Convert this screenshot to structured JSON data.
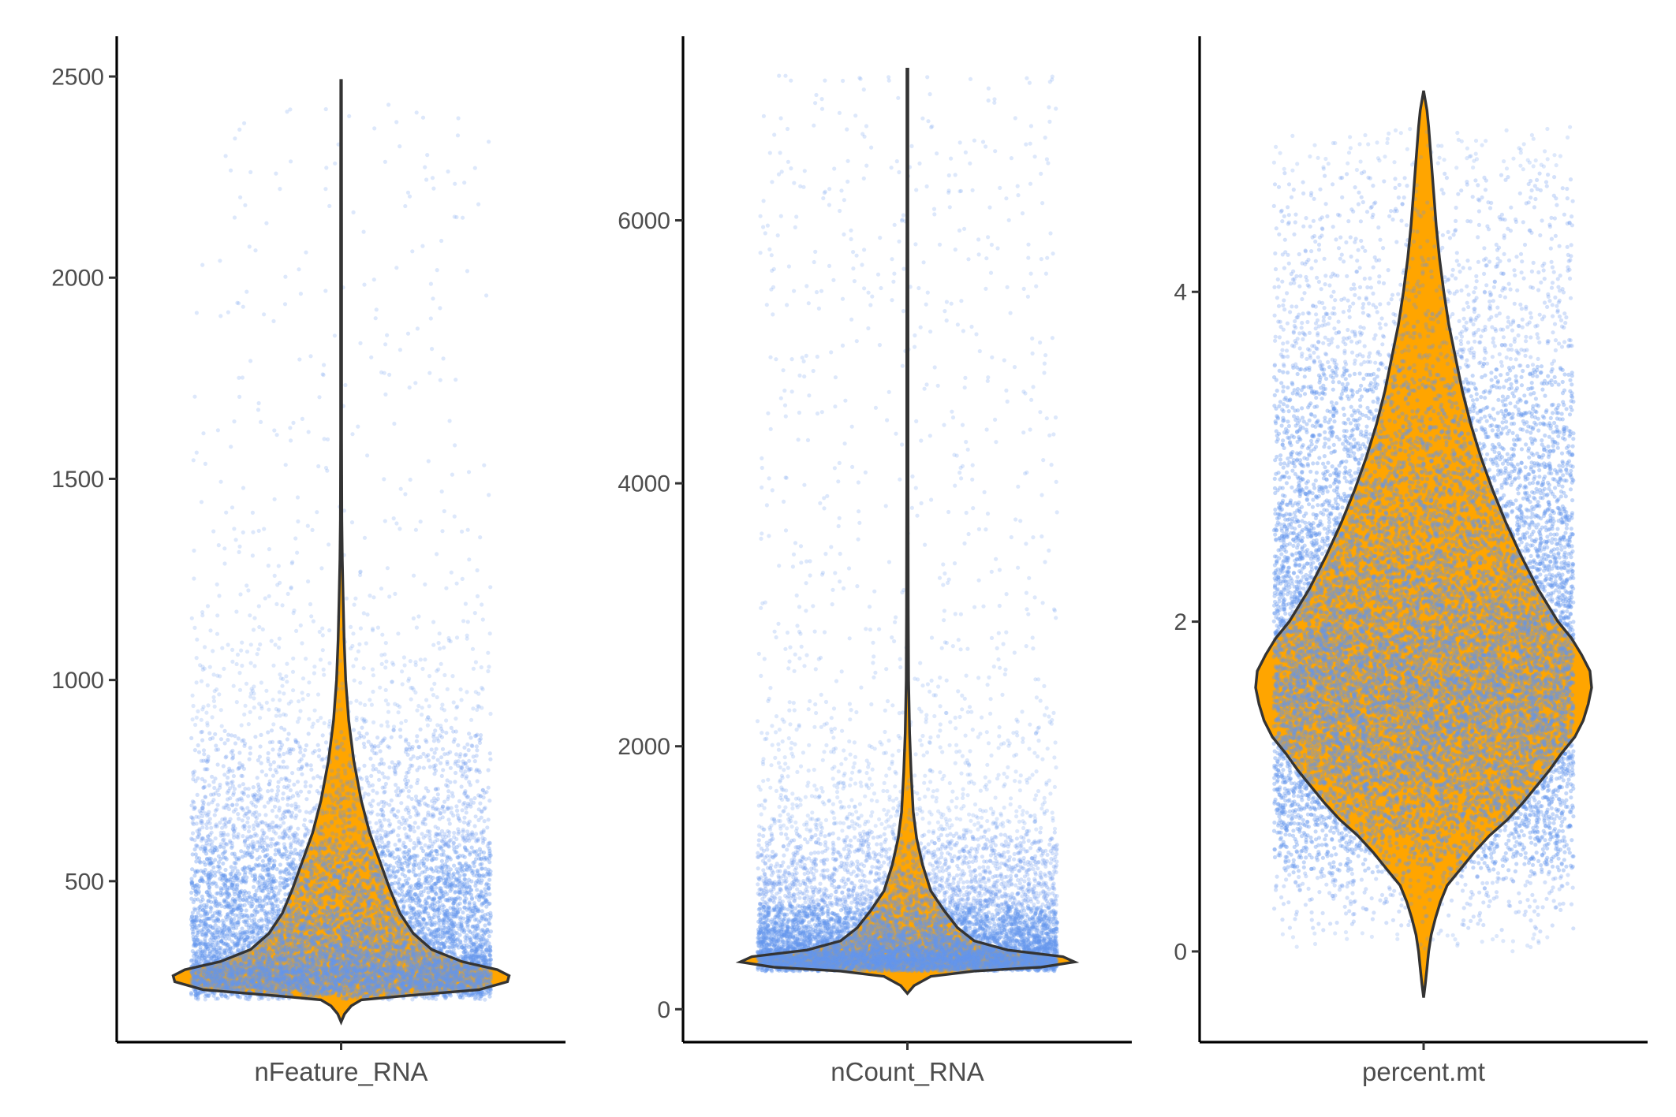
{
  "colors": {
    "violin_fill": "#FFA500",
    "points": "#6495ED",
    "outline": "#333333",
    "axis": "#000000"
  },
  "chart_data": [
    {
      "type": "violin",
      "xlabel": "nFeature_RNA",
      "yticks": [
        500,
        1000,
        1500,
        2000,
        2500
      ],
      "ylim": [
        100,
        2600
      ],
      "range": [
        150,
        2490
      ],
      "point_range": [
        205,
        2430
      ],
      "mode": 265,
      "density": [
        [
          150,
          0
        ],
        [
          170,
          0.02
        ],
        [
          190,
          0.06
        ],
        [
          205,
          0.12
        ],
        [
          215,
          0.38
        ],
        [
          230,
          0.82
        ],
        [
          250,
          0.99
        ],
        [
          265,
          1.0
        ],
        [
          280,
          0.93
        ],
        [
          300,
          0.72
        ],
        [
          330,
          0.54
        ],
        [
          370,
          0.43
        ],
        [
          420,
          0.35
        ],
        [
          480,
          0.29
        ],
        [
          550,
          0.23
        ],
        [
          620,
          0.17
        ],
        [
          700,
          0.12
        ],
        [
          800,
          0.075
        ],
        [
          900,
          0.045
        ],
        [
          1000,
          0.027
        ],
        [
          1100,
          0.018
        ],
        [
          1200,
          0.012
        ],
        [
          1300,
          0.007
        ],
        [
          1400,
          0.004
        ],
        [
          1600,
          0.003
        ],
        [
          1800,
          0.003
        ],
        [
          2100,
          0.003
        ],
        [
          2490,
          0.002
        ]
      ]
    },
    {
      "type": "violin",
      "xlabel": "nCount_RNA",
      "yticks": [
        0,
        2000,
        4000,
        6000
      ],
      "ylim": [
        -250,
        7400
      ],
      "range": [
        120,
        7150
      ],
      "point_range": [
        290,
        7100
      ],
      "mode": 360,
      "density": [
        [
          120,
          0
        ],
        [
          180,
          0.04
        ],
        [
          250,
          0.14
        ],
        [
          290,
          0.4
        ],
        [
          320,
          0.8
        ],
        [
          360,
          1.0
        ],
        [
          400,
          0.93
        ],
        [
          450,
          0.6
        ],
        [
          520,
          0.4
        ],
        [
          620,
          0.3
        ],
        [
          750,
          0.22
        ],
        [
          900,
          0.14
        ],
        [
          1100,
          0.09
        ],
        [
          1300,
          0.055
        ],
        [
          1500,
          0.035
        ],
        [
          1800,
          0.022
        ],
        [
          2100,
          0.013
        ],
        [
          2500,
          0.007
        ],
        [
          3000,
          0.005
        ],
        [
          4000,
          0.004
        ],
        [
          5000,
          0.004
        ],
        [
          6000,
          0.003
        ],
        [
          7150,
          0.003
        ]
      ]
    },
    {
      "type": "violin",
      "xlabel": "percent.mt",
      "yticks": [
        0,
        2,
        4
      ],
      "ylim": [
        -0.55,
        5.55
      ],
      "range": [
        -0.28,
        5.22
      ],
      "point_range": [
        0,
        5.0
      ],
      "mode": 1.62,
      "density": [
        [
          -0.28,
          0
        ],
        [
          -0.2,
          0.01
        ],
        [
          -0.1,
          0.02
        ],
        [
          0,
          0.03
        ],
        [
          0.1,
          0.045
        ],
        [
          0.2,
          0.07
        ],
        [
          0.3,
          0.1
        ],
        [
          0.4,
          0.14
        ],
        [
          0.5,
          0.22
        ],
        [
          0.6,
          0.3
        ],
        [
          0.7,
          0.39
        ],
        [
          0.8,
          0.5
        ],
        [
          0.9,
          0.59
        ],
        [
          1.0,
          0.67
        ],
        [
          1.1,
          0.75
        ],
        [
          1.2,
          0.82
        ],
        [
          1.3,
          0.9
        ],
        [
          1.4,
          0.95
        ],
        [
          1.5,
          0.98
        ],
        [
          1.6,
          1.0
        ],
        [
          1.7,
          0.99
        ],
        [
          1.8,
          0.94
        ],
        [
          1.9,
          0.88
        ],
        [
          2.0,
          0.8
        ],
        [
          2.2,
          0.68
        ],
        [
          2.4,
          0.58
        ],
        [
          2.6,
          0.49
        ],
        [
          2.8,
          0.41
        ],
        [
          3.0,
          0.34
        ],
        [
          3.2,
          0.28
        ],
        [
          3.4,
          0.23
        ],
        [
          3.6,
          0.19
        ],
        [
          3.8,
          0.15
        ],
        [
          4.0,
          0.12
        ],
        [
          4.2,
          0.095
        ],
        [
          4.4,
          0.075
        ],
        [
          4.6,
          0.06
        ],
        [
          4.8,
          0.045
        ],
        [
          5.0,
          0.03
        ],
        [
          5.1,
          0.02
        ],
        [
          5.22,
          0
        ]
      ]
    }
  ]
}
